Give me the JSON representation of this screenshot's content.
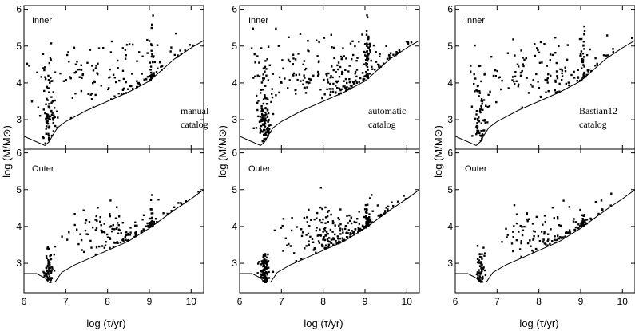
{
  "chart_data": {
    "type": "scatter",
    "layout": "3 columns x 2 rows",
    "shared_xlabel": "log (τ/yr)",
    "shared_ylabel": "log (M/M⊙)",
    "xlim": [
      6,
      10.3
    ],
    "ylim": [
      2.2,
      6.1
    ],
    "xticks": [
      "6",
      "7",
      "8",
      "9",
      "10"
    ],
    "yticks": [
      "3",
      "4",
      "5",
      "6"
    ],
    "columns": [
      {
        "annotation": [
          "manual",
          "catalog"
        ],
        "density": 1.0
      },
      {
        "annotation": [
          "automatic",
          "catalog"
        ],
        "density": 1.6
      },
      {
        "annotation": [
          "Bastian12",
          "catalog"
        ],
        "density": 0.9
      }
    ],
    "rows": [
      {
        "region": "Inner"
      },
      {
        "region": "Outer"
      }
    ],
    "detection_limit_curves": {
      "inner": [
        [
          6.0,
          2.55
        ],
        [
          6.2,
          2.45
        ],
        [
          6.4,
          2.35
        ],
        [
          6.5,
          2.3
        ],
        [
          6.6,
          2.4
        ],
        [
          6.7,
          2.6
        ],
        [
          6.8,
          2.78
        ],
        [
          7.0,
          2.95
        ],
        [
          7.5,
          3.25
        ],
        [
          8.0,
          3.5
        ],
        [
          8.5,
          3.75
        ],
        [
          9.0,
          4.05
        ],
        [
          9.3,
          4.35
        ],
        [
          9.6,
          4.65
        ],
        [
          10.0,
          4.95
        ],
        [
          10.3,
          5.15
        ]
      ],
      "outer": [
        [
          6.0,
          2.72
        ],
        [
          6.3,
          2.72
        ],
        [
          6.5,
          2.6
        ],
        [
          6.6,
          2.48
        ],
        [
          6.75,
          2.5
        ],
        [
          6.9,
          2.75
        ],
        [
          7.2,
          2.95
        ],
        [
          7.6,
          3.15
        ],
        [
          8.0,
          3.35
        ],
        [
          8.5,
          3.6
        ],
        [
          9.0,
          3.95
        ],
        [
          9.3,
          4.2
        ],
        [
          9.6,
          4.45
        ],
        [
          10.0,
          4.75
        ],
        [
          10.3,
          5.0
        ]
      ]
    },
    "point_clusters": {
      "inner": [
        {
          "x": 6.6,
          "y": 3.0,
          "sx": 0.08,
          "sy": 0.35,
          "n": 60
        },
        {
          "x": 6.55,
          "y": 4.1,
          "sx": 0.12,
          "sy": 0.4,
          "n": 22
        },
        {
          "x": 7.5,
          "y": 4.2,
          "sx": 0.5,
          "sy": 0.4,
          "n": 55
        },
        {
          "x": 8.6,
          "y": 3.9,
          "sx": 0.45,
          "sy": 0.3,
          "n": 55
        },
        {
          "x": 9.05,
          "y": 4.6,
          "sx": 0.03,
          "sy": 0.55,
          "n": 30
        },
        {
          "x": 8.5,
          "y": 4.85,
          "sx": 0.6,
          "sy": 0.25,
          "n": 20
        },
        {
          "x": 9.6,
          "y": 4.6,
          "sx": 0.35,
          "sy": 0.35,
          "n": 10
        }
      ],
      "outer": [
        {
          "x": 6.6,
          "y": 2.8,
          "sx": 0.06,
          "sy": 0.3,
          "n": 60
        },
        {
          "x": 7.8,
          "y": 3.8,
          "sx": 0.4,
          "sy": 0.35,
          "n": 55
        },
        {
          "x": 8.6,
          "y": 3.7,
          "sx": 0.4,
          "sy": 0.35,
          "n": 65
        },
        {
          "x": 9.05,
          "y": 4.0,
          "sx": 0.03,
          "sy": 0.35,
          "n": 25
        },
        {
          "x": 9.5,
          "y": 4.4,
          "sx": 0.35,
          "sy": 0.3,
          "n": 12
        }
      ]
    }
  }
}
